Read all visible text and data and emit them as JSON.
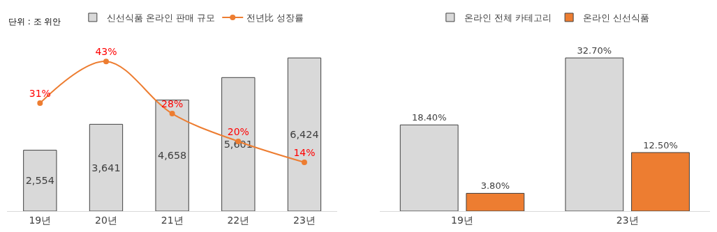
{
  "chart_data": [
    {
      "type": "bar",
      "categories": [
        "19년",
        "20년",
        "21년",
        "22년",
        "23년"
      ],
      "series": [
        {
          "name": "신선식품 온라인 판매 규모",
          "color": "#d9d9d9",
          "values": [
            2554,
            3641,
            4658,
            5601,
            6424
          ],
          "value_labels": [
            "2,554",
            "3,641",
            "4,658",
            "5,601",
            "6,424"
          ]
        },
        {
          "name": "전년比 성장률",
          "type": "line",
          "axis": "y2",
          "color": "#ed7d31",
          "values": [
            31,
            43,
            28,
            20,
            14
          ],
          "value_labels": [
            "31%",
            "43%",
            "28%",
            "20%",
            "14%"
          ],
          "marker": "circle"
        }
      ],
      "tick_labels": "x",
      "legend": "top",
      "annotations": [
        "단위 : 조 위안"
      ]
    },
    {
      "type": "bar",
      "categories": [
        "19년",
        "23년"
      ],
      "series": [
        {
          "name": "온라인 전체 카테고리",
          "color": "#d9d9d9",
          "values": [
            18.4,
            32.7
          ],
          "value_labels": [
            "18.40%",
            "32.70%"
          ]
        },
        {
          "name": "온라인 신선식품",
          "color": "#ed7d31",
          "values": [
            3.8,
            12.5
          ],
          "value_labels": [
            "3.80%",
            "12.50%"
          ]
        }
      ],
      "tick_labels": "x",
      "legend": "top"
    }
  ]
}
